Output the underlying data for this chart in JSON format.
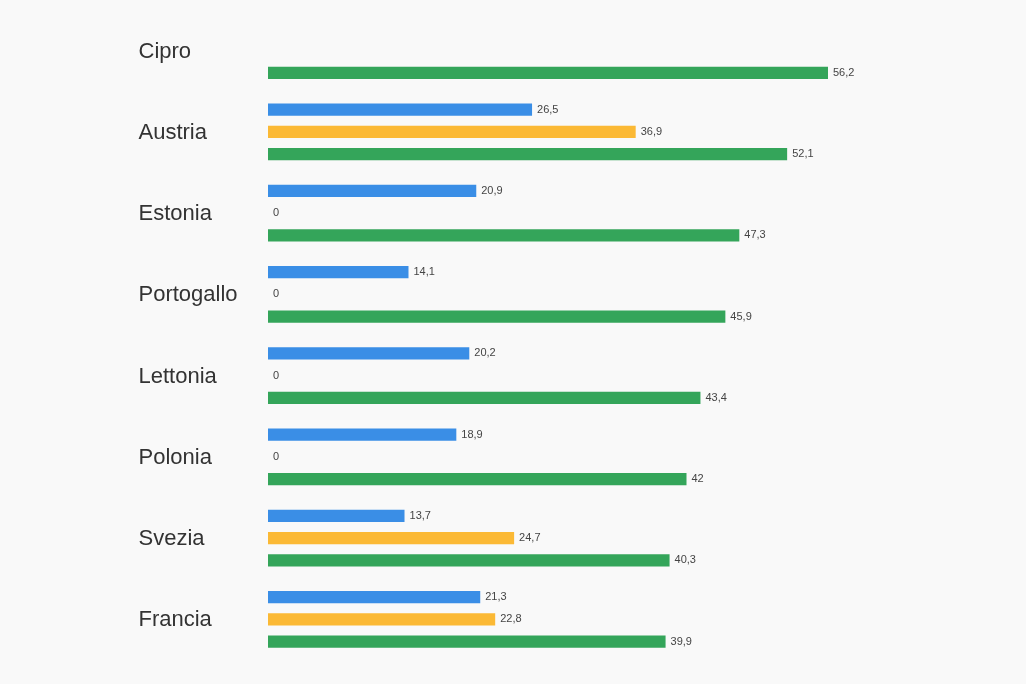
{
  "chart_data": {
    "type": "bar",
    "orientation": "horizontal",
    "categories": [
      "Cipro",
      "Austria",
      "Estonia",
      "Portogallo",
      "Lettonia",
      "Polonia",
      "Svezia",
      "Francia"
    ],
    "series": [
      {
        "color": "#3a8ee6",
        "values": [
          null,
          26.5,
          20.9,
          14.1,
          20.2,
          18.9,
          13.7,
          21.3
        ],
        "value_labels": [
          null,
          "26,5",
          "20,9",
          "14,1",
          "20,2",
          "18,9",
          "13,7",
          "21,3"
        ]
      },
      {
        "color": "#fbb935",
        "values": [
          null,
          36.9,
          0,
          0,
          0,
          0,
          24.7,
          22.8
        ],
        "value_labels": [
          null,
          "36,9",
          "0",
          "0",
          "0",
          "0",
          "24,7",
          "22,8"
        ]
      },
      {
        "color": "#34a55a",
        "values": [
          56.2,
          52.1,
          47.3,
          45.9,
          43.4,
          42,
          40.3,
          39.9
        ],
        "value_labels": [
          "56,2",
          "52,1",
          "47,3",
          "45,9",
          "43,4",
          "42",
          "40,3",
          "39,9"
        ]
      }
    ],
    "legend": false,
    "grid": false
  }
}
